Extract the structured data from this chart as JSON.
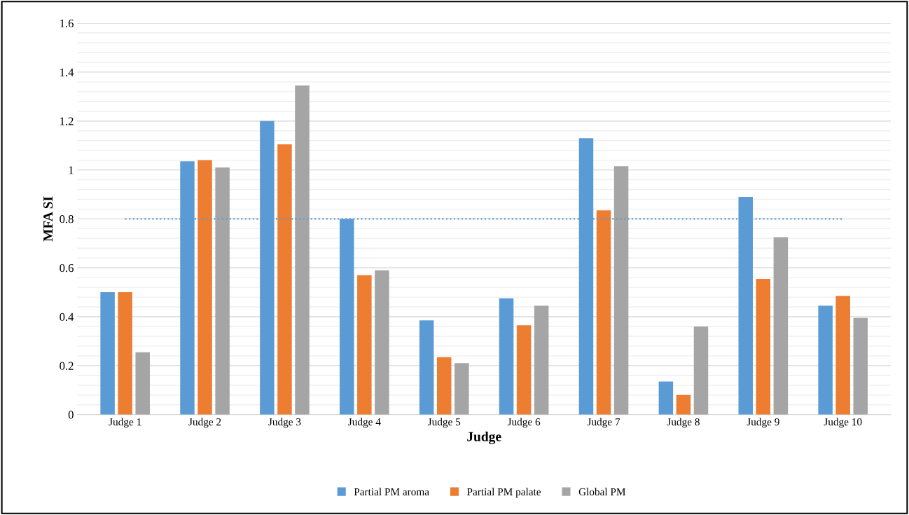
{
  "chart_data": {
    "type": "bar",
    "xlabel": "Judge",
    "ylabel": "MFA SI",
    "categories": [
      "Judge 1",
      "Judge 2",
      "Judge 3",
      "Judge 4",
      "Judge 5",
      "Judge 6",
      "Judge 7",
      "Judge 8",
      "Judge 9",
      "Judge 10"
    ],
    "series": [
      {
        "name": "Partial PM aroma",
        "color": "#5b9bd5",
        "values": [
          0.5,
          1.035,
          1.2,
          0.8,
          0.385,
          0.475,
          1.13,
          0.135,
          0.89,
          0.445
        ]
      },
      {
        "name": "Partial PM palate",
        "color": "#ed7d31",
        "values": [
          0.5,
          1.04,
          1.105,
          0.57,
          0.235,
          0.365,
          0.835,
          0.08,
          0.555,
          0.485
        ]
      },
      {
        "name": "Global PM",
        "color": "#a5a5a5",
        "values": [
          0.255,
          1.01,
          1.345,
          0.59,
          0.21,
          0.445,
          1.015,
          0.36,
          0.725,
          0.395
        ]
      }
    ],
    "ylim": [
      0,
      1.6
    ],
    "yticks": [
      0,
      {
        "value": 0.04,
        "label": null
      },
      {
        "value": 0.08,
        "label": null
      },
      {
        "value": 0.12,
        "label": null
      },
      {
        "value": 0.16,
        "label": null
      },
      0.2,
      {
        "value": 0.24,
        "label": null
      },
      {
        "value": 0.28,
        "label": null
      },
      {
        "value": 0.32,
        "label": null
      },
      {
        "value": 0.36,
        "label": null
      },
      0.4,
      {
        "value": 0.44,
        "label": null
      },
      {
        "value": 0.48,
        "label": null
      },
      {
        "value": 0.52,
        "label": null
      },
      {
        "value": 0.56,
        "label": null
      },
      0.6,
      {
        "value": 0.64,
        "label": null
      },
      {
        "value": 0.68,
        "label": null
      },
      {
        "value": 0.72,
        "label": null
      },
      {
        "value": 0.76,
        "label": null
      },
      0.8,
      {
        "value": 0.84,
        "label": null
      },
      {
        "value": 0.88,
        "label": null
      },
      {
        "value": 0.92,
        "label": null
      },
      {
        "value": 0.96,
        "label": null
      },
      1,
      {
        "value": 1.04,
        "label": null
      },
      {
        "value": 1.08,
        "label": null
      },
      {
        "value": 1.12,
        "label": null
      },
      {
        "value": 1.16,
        "label": null
      },
      1.2,
      {
        "value": 1.24,
        "label": null
      },
      {
        "value": 1.28,
        "label": null
      },
      {
        "value": 1.32,
        "label": null
      },
      {
        "value": 1.36,
        "label": null
      },
      1.4,
      {
        "value": 1.44,
        "label": null
      },
      {
        "value": 1.48,
        "label": null
      },
      {
        "value": 1.52,
        "label": null
      },
      {
        "value": 1.56,
        "label": null
      },
      1.6
    ],
    "ref_lines": [
      {
        "axis": "y",
        "value": 0.8,
        "label": null,
        "color": "#5b9bd5",
        "line_style": "dotted"
      }
    ],
    "grid": "y",
    "legend": "bottom"
  }
}
